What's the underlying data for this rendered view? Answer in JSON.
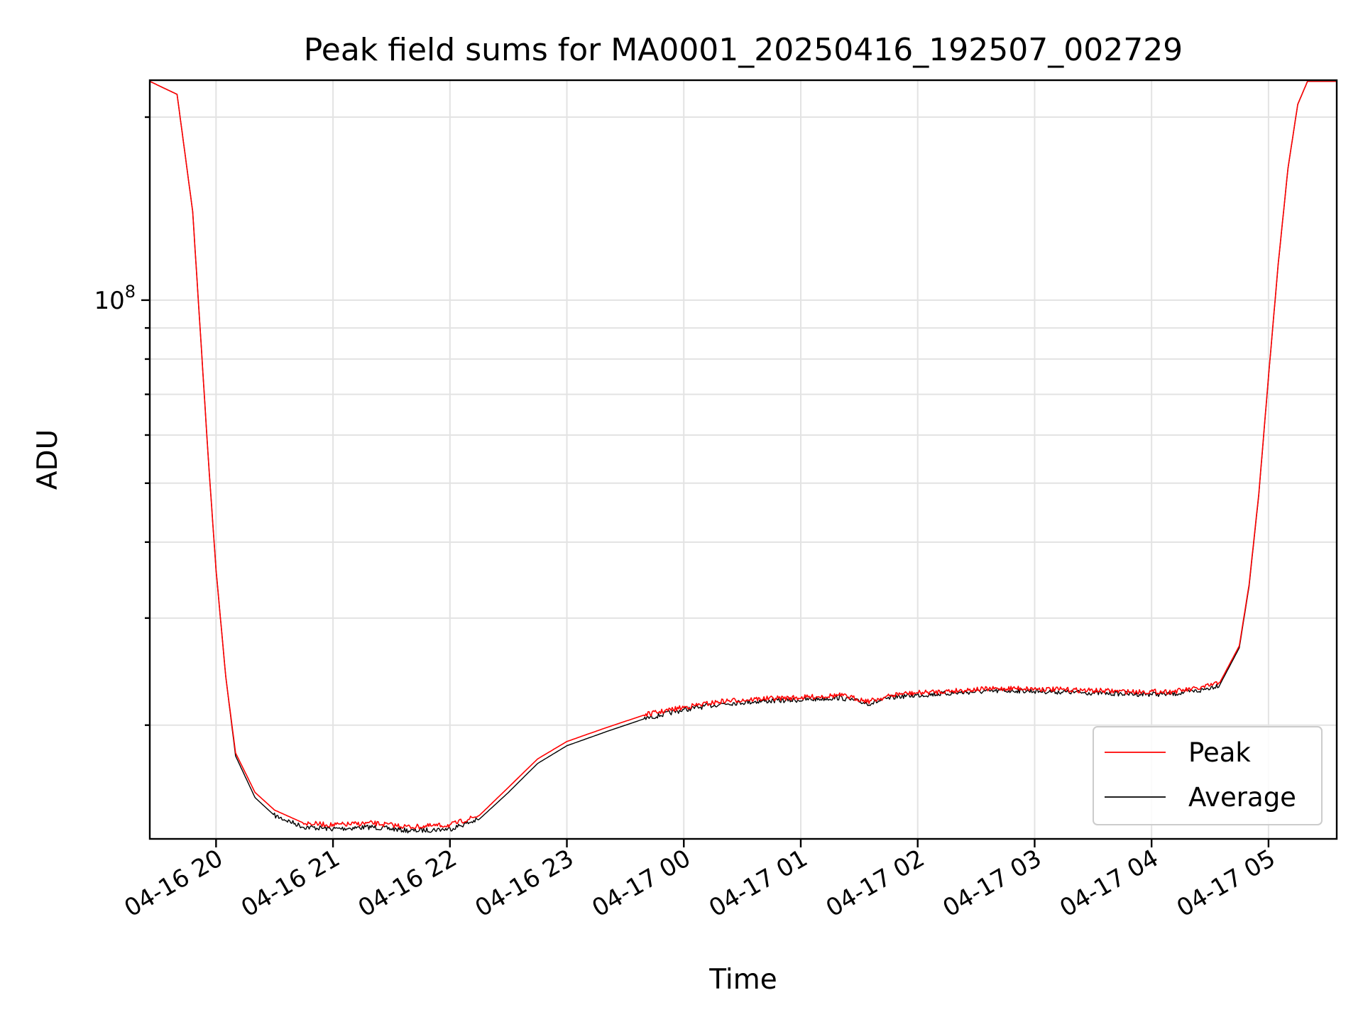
{
  "chart_data": {
    "type": "line",
    "title": "Peak field sums for MA0001_20250416_192507_002729",
    "xlabel": "Time",
    "ylabel": "ADU",
    "y_scale": "log",
    "ylim": [
      13000000,
      230000000
    ],
    "xlim": [
      "2025-04-16 19:26",
      "2025-04-17 05:35"
    ],
    "x_tick_labels": [
      "04-16 20",
      "04-16 21",
      "04-16 22",
      "04-16 23",
      "04-17 00",
      "04-17 01",
      "04-17 02",
      "04-17 03",
      "04-17 04",
      "04-17 05"
    ],
    "x_tick_values": [
      "2025-04-16 20:00",
      "2025-04-16 21:00",
      "2025-04-16 22:00",
      "2025-04-16 23:00",
      "2025-04-17 00:00",
      "2025-04-17 01:00",
      "2025-04-17 02:00",
      "2025-04-17 03:00",
      "2025-04-17 04:00",
      "2025-04-17 05:00"
    ],
    "y_tick_labels": [
      {
        "base": "10",
        "exp": "8",
        "value": 100000000
      }
    ],
    "y_major_ticks": [
      100000000
    ],
    "y_minor_ticks": [
      20000000,
      30000000,
      40000000,
      50000000,
      60000000,
      70000000,
      80000000,
      90000000,
      200000000
    ],
    "grid": true,
    "legend_position": "lower-right",
    "series": [
      {
        "name": "Peak",
        "color": "#ff0000",
        "x": [
          "2025-04-16 19:26",
          "2025-04-16 19:40",
          "2025-04-16 19:48",
          "2025-04-16 19:52",
          "2025-04-16 19:56",
          "2025-04-16 20:00",
          "2025-04-16 20:05",
          "2025-04-16 20:10",
          "2025-04-16 20:20",
          "2025-04-16 20:30",
          "2025-04-16 20:45",
          "2025-04-16 21:00",
          "2025-04-16 21:20",
          "2025-04-16 21:40",
          "2025-04-16 22:00",
          "2025-04-16 22:15",
          "2025-04-16 22:30",
          "2025-04-16 22:45",
          "2025-04-16 23:00",
          "2025-04-16 23:20",
          "2025-04-16 23:40",
          "2025-04-17 00:00",
          "2025-04-17 00:20",
          "2025-04-17 00:40",
          "2025-04-17 01:00",
          "2025-04-17 01:20",
          "2025-04-17 01:35",
          "2025-04-17 01:50",
          "2025-04-17 02:10",
          "2025-04-17 02:30",
          "2025-04-17 02:50",
          "2025-04-17 03:10",
          "2025-04-17 03:30",
          "2025-04-17 03:50",
          "2025-04-17 04:10",
          "2025-04-17 04:25",
          "2025-04-17 04:35",
          "2025-04-17 04:45",
          "2025-04-17 04:50",
          "2025-04-17 04:55",
          "2025-04-17 05:00",
          "2025-04-17 05:05",
          "2025-04-17 05:10",
          "2025-04-17 05:15",
          "2025-04-17 05:20",
          "2025-04-17 05:25",
          "2025-04-17 05:35"
        ],
        "y": [
          229000000,
          218000000,
          140000000,
          88000000,
          55000000,
          36000000,
          24000000,
          18000000,
          15500000,
          14500000,
          13800000,
          13700000,
          13800000,
          13600000,
          13700000,
          14200000,
          15800000,
          17600000,
          18800000,
          19800000,
          20800000,
          21400000,
          21900000,
          22100000,
          22200000,
          22400000,
          21900000,
          22500000,
          22700000,
          22900000,
          23000000,
          22900000,
          22800000,
          22700000,
          22700000,
          23000000,
          23500000,
          27000000,
          34000000,
          48000000,
          75000000,
          115000000,
          165000000,
          210000000,
          229000000,
          229000000,
          229000000
        ]
      },
      {
        "name": "Average",
        "color": "#000000",
        "x": [
          "2025-04-16 19:26",
          "2025-04-16 19:40",
          "2025-04-16 19:48",
          "2025-04-16 19:52",
          "2025-04-16 19:56",
          "2025-04-16 20:00",
          "2025-04-16 20:05",
          "2025-04-16 20:10",
          "2025-04-16 20:20",
          "2025-04-16 20:30",
          "2025-04-16 20:45",
          "2025-04-16 21:00",
          "2025-04-16 21:20",
          "2025-04-16 21:40",
          "2025-04-16 22:00",
          "2025-04-16 22:15",
          "2025-04-16 22:30",
          "2025-04-16 22:45",
          "2025-04-16 23:00",
          "2025-04-16 23:20",
          "2025-04-16 23:40",
          "2025-04-17 00:00",
          "2025-04-17 00:20",
          "2025-04-17 00:40",
          "2025-04-17 01:00",
          "2025-04-17 01:20",
          "2025-04-17 01:35",
          "2025-04-17 01:50",
          "2025-04-17 02:10",
          "2025-04-17 02:30",
          "2025-04-17 02:50",
          "2025-04-17 03:10",
          "2025-04-17 03:30",
          "2025-04-17 03:50",
          "2025-04-17 04:10",
          "2025-04-17 04:25",
          "2025-04-17 04:35",
          "2025-04-17 04:45",
          "2025-04-17 04:50",
          "2025-04-17 04:55",
          "2025-04-17 05:00",
          "2025-04-17 05:05",
          "2025-04-17 05:10",
          "2025-04-17 05:15",
          "2025-04-17 05:20",
          "2025-04-17 05:25",
          "2025-04-17 05:35"
        ],
        "y": [
          229000000,
          218000000,
          140000000,
          88000000,
          55000000,
          36000000,
          24000000,
          17800000,
          15200000,
          14200000,
          13600000,
          13500000,
          13600000,
          13400000,
          13500000,
          14000000,
          15500000,
          17300000,
          18500000,
          19500000,
          20500000,
          21200000,
          21700000,
          21900000,
          22000000,
          22200000,
          21700000,
          22300000,
          22500000,
          22700000,
          22800000,
          22700000,
          22600000,
          22500000,
          22500000,
          22800000,
          23300000,
          26800000,
          33800000,
          47800000,
          74800000,
          114800000,
          164800000,
          209800000,
          229000000,
          229000000,
          229000000
        ]
      }
    ]
  }
}
